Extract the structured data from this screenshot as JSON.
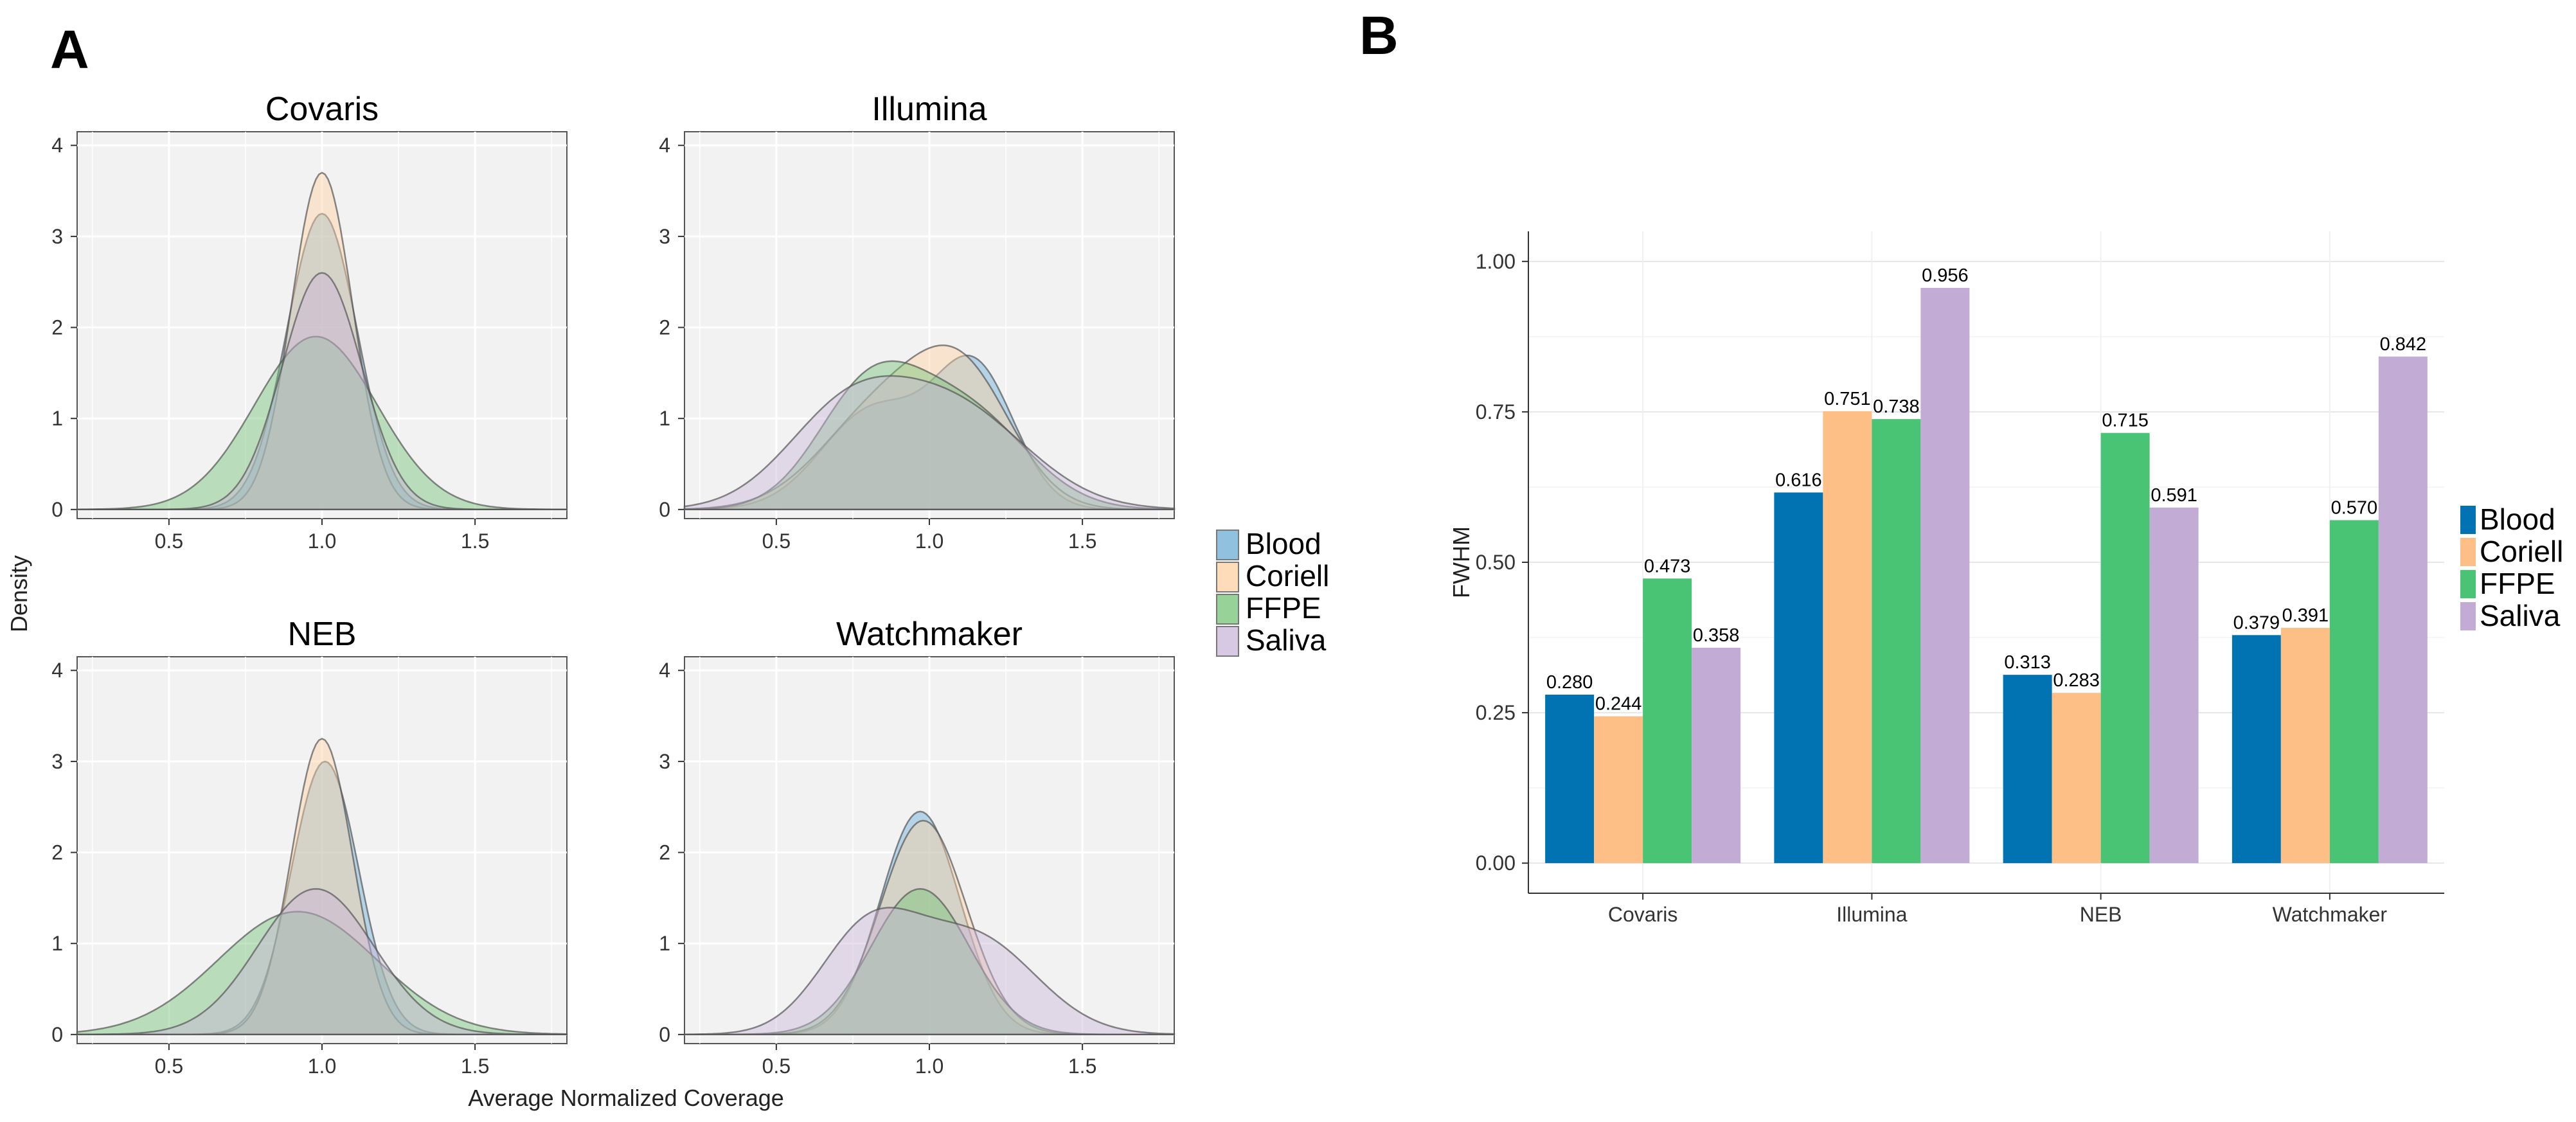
{
  "panel_labels": {
    "a": "A",
    "b": "B"
  },
  "chart_data": [
    {
      "type": "area",
      "title": "",
      "xlabel": "Average Normalized Coverage",
      "ylabel": "Density",
      "xlim": [
        0.2,
        1.8
      ],
      "ylim": [
        -0.1,
        4.15
      ],
      "x_ticks": [
        "0.5",
        "1.0",
        "1.5"
      ],
      "y_ticks": [
        "0",
        "1",
        "2",
        "3",
        "4"
      ],
      "grid": true,
      "legend_position": "right",
      "legend": [
        "Blood",
        "Coriell",
        "FFPE",
        "Saliva"
      ],
      "colors": {
        "Blood": "#6baed6",
        "Coriell": "#fdd0a2",
        "FFPE": "#74c476",
        "Saliva": "#c9b6d9"
      },
      "facets": [
        {
          "title": "Covaris",
          "series": [
            {
              "name": "Blood",
              "peaks": [
                [
                  1.0,
                  3.25,
                  0.115
                ]
              ]
            },
            {
              "name": "Coriell",
              "peaks": [
                [
                  1.0,
                  3.7,
                  0.1
                ]
              ]
            },
            {
              "name": "FFPE",
              "peaks": [
                [
                  0.98,
                  1.9,
                  0.2
                ]
              ]
            },
            {
              "name": "Saliva",
              "peaks": [
                [
                  1.0,
                  2.6,
                  0.13
                ]
              ]
            }
          ]
        },
        {
          "title": "Illumina",
          "series": [
            {
              "name": "Blood",
              "peaks": [
                [
                  0.82,
                  1.1,
                  0.17
                ],
                [
                  1.15,
                  1.5,
                  0.13
                ]
              ]
            },
            {
              "name": "Coriell",
              "peaks": [
                [
                  0.85,
                  1.1,
                  0.2
                ],
                [
                  1.12,
                  1.25,
                  0.16
                ]
              ]
            },
            {
              "name": "FFPE",
              "peaks": [
                [
                  0.8,
                  1.25,
                  0.17
                ],
                [
                  1.12,
                  1.05,
                  0.2
                ]
              ]
            },
            {
              "name": "Saliva",
              "peaks": [
                [
                  0.72,
                  0.95,
                  0.2
                ],
                [
                  1.08,
                  1.1,
                  0.24
                ]
              ]
            }
          ]
        },
        {
          "title": "NEB",
          "series": [
            {
              "name": "Blood",
              "peaks": [
                [
                  1.01,
                  3.0,
                  0.11
                ]
              ]
            },
            {
              "name": "Coriell",
              "peaks": [
                [
                  1.0,
                  3.25,
                  0.1
                ]
              ]
            },
            {
              "name": "FFPE",
              "peaks": [
                [
                  0.92,
                  1.35,
                  0.26
                ]
              ]
            },
            {
              "name": "Saliva",
              "peaks": [
                [
                  0.98,
                  1.6,
                  0.19
                ]
              ]
            }
          ]
        },
        {
          "title": "Watchmaker",
          "series": [
            {
              "name": "Blood",
              "peaks": [
                [
                  0.97,
                  2.45,
                  0.13
                ]
              ]
            },
            {
              "name": "Coriell",
              "peaks": [
                [
                  0.98,
                  2.35,
                  0.14
                ]
              ]
            },
            {
              "name": "FFPE",
              "peaks": [
                [
                  0.97,
                  1.6,
                  0.16
                ]
              ]
            },
            {
              "name": "Saliva",
              "peaks": [
                [
                  0.8,
                  1.1,
                  0.16
                ],
                [
                  1.15,
                  1.05,
                  0.2
                ]
              ]
            }
          ]
        }
      ]
    },
    {
      "type": "bar",
      "title": "",
      "xlabel": "",
      "ylabel": "FWHM",
      "categories": [
        "Covaris",
        "Illumina",
        "NEB",
        "Watchmaker"
      ],
      "ylim": [
        -0.05,
        1.05
      ],
      "y_ticks": [
        "0.00",
        "0.25",
        "0.50",
        "0.75",
        "1.00"
      ],
      "grid": true,
      "legend_position": "right",
      "series": [
        {
          "name": "Blood",
          "color": "#0173b2",
          "values": [
            0.28,
            0.616,
            0.313,
            0.379
          ],
          "labels": [
            "0.280",
            "0.616",
            "0.313",
            "0.379"
          ]
        },
        {
          "name": "Coriell",
          "color": "#fdbf85",
          "values": [
            0.244,
            0.751,
            0.283,
            0.391
          ],
          "labels": [
            "0.244",
            "0.751",
            "0.283",
            "0.391"
          ]
        },
        {
          "name": "FFPE",
          "color": "#49c474",
          "values": [
            0.473,
            0.738,
            0.715,
            0.57
          ],
          "labels": [
            "0.473",
            "0.738",
            "0.715",
            "0.570"
          ]
        },
        {
          "name": "Saliva",
          "color": "#c2acd6",
          "values": [
            0.358,
            0.956,
            0.591,
            0.842
          ],
          "labels": [
            "0.358",
            "0.956",
            "0.591",
            "0.842"
          ]
        }
      ]
    }
  ]
}
